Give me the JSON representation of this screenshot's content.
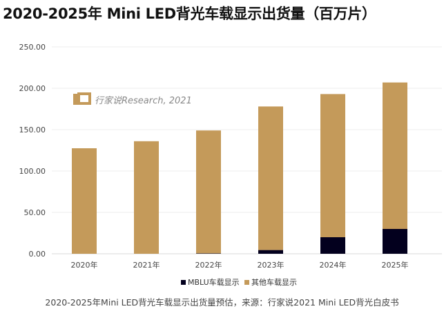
{
  "chart_data": {
    "type": "bar",
    "stacked": true,
    "title": "2020-2025年 Mini LED背光车载显示出货量（百万片）",
    "categories": [
      "2020年",
      "2021年",
      "2022年",
      "2023年",
      "2024年",
      "2025年"
    ],
    "series": [
      {
        "name": "MBLU车载显示",
        "color": "#03001e",
        "values": [
          0,
          0,
          0.5,
          4.5,
          20,
          30
        ]
      },
      {
        "name": "其他车载显示",
        "color": "#c49a5a",
        "values": [
          127.5,
          136,
          148.5,
          173.5,
          173,
          177
        ]
      }
    ],
    "yticks": [
      "0.00",
      "50.00",
      "100.00",
      "150.00",
      "200.00",
      "250.00"
    ],
    "ylim": [
      0,
      250
    ],
    "grid": true,
    "legend": "bottom",
    "watermark": "行家说Research, 2021"
  },
  "caption": "2020-2025年Mini LED背光车载显示出货量预估，来源：行家说2021 Mini LED背光白皮书"
}
